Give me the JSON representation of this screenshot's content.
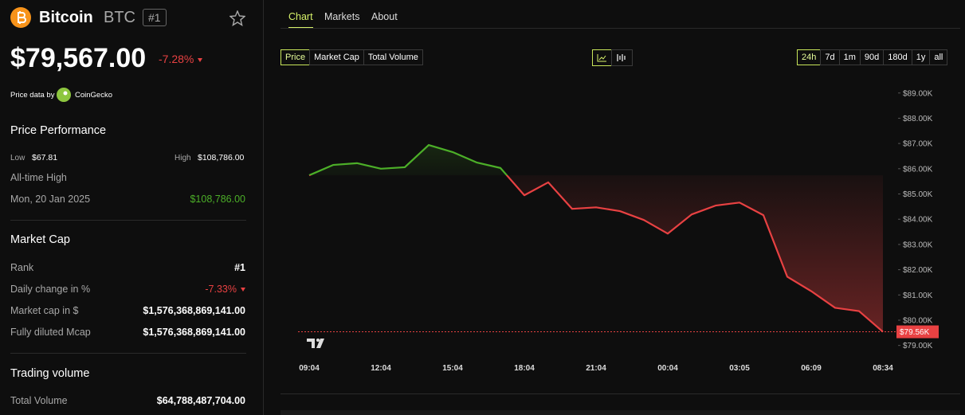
{
  "header": {
    "name": "Bitcoin",
    "symbol": "BTC",
    "rank_badge": "#1",
    "price": "$79,567.00",
    "change": "-7.28%"
  },
  "source": {
    "label": "Price data by",
    "provider": "CoinGecko"
  },
  "performance": {
    "title": "Price Performance",
    "low_label": "Low",
    "low": "$67.81",
    "high_label": "High",
    "high": "$108,786.00",
    "ath_label": "All-time High",
    "ath_date": "Mon, 20 Jan 2025",
    "ath_value": "$108,786.00"
  },
  "market_cap": {
    "title": "Market Cap",
    "rows": [
      {
        "label": "Rank",
        "value": "#1"
      },
      {
        "label": "Daily change in %",
        "value": "-7.33%"
      },
      {
        "label": "Market cap in $",
        "value": "$1,576,368,869,141.00"
      },
      {
        "label": "Fully diluted Mcap",
        "value": "$1,576,368,869,141.00"
      }
    ]
  },
  "trading_volume": {
    "title": "Trading volume",
    "rows": [
      {
        "label": "Total Volume",
        "value": "$64,788,487,704.00"
      }
    ]
  },
  "tabs": [
    "Chart",
    "Markets",
    "About"
  ],
  "metric_buttons": [
    "Price",
    "Market Cap",
    "Total Volume"
  ],
  "range_buttons": [
    "24h",
    "7d",
    "1m",
    "90d",
    "180d",
    "1y",
    "all"
  ],
  "chart_data": {
    "type": "line",
    "categories": [
      "09:04",
      null,
      null,
      "12:04",
      null,
      null,
      "15:04",
      null,
      null,
      "18:04",
      null,
      null,
      "21:04",
      null,
      null,
      "00:04",
      null,
      null,
      "03:05",
      null,
      null,
      "06:09",
      null,
      null,
      "08:34"
    ],
    "values": [
      85.74,
      86.15,
      86.22,
      86.0,
      86.06,
      86.94,
      86.66,
      86.25,
      86.03,
      84.95,
      85.46,
      84.41,
      84.47,
      84.32,
      83.97,
      83.43,
      84.19,
      84.54,
      84.66,
      84.16,
      81.72,
      81.15,
      80.49,
      80.36,
      79.54
    ],
    "color_up": "#4caf28",
    "color_down": "#e84142",
    "ylim": [
      78.8,
      89.15
    ],
    "yticks": [
      {
        "value": 79,
        "label": "$79.00K"
      },
      {
        "value": 80,
        "label": "$80.00K"
      },
      {
        "value": 81,
        "label": "$81.00K"
      },
      {
        "value": 82,
        "label": "$82.00K"
      },
      {
        "value": 83,
        "label": "$83.00K"
      },
      {
        "value": 84,
        "label": "$84.00K"
      },
      {
        "value": 85,
        "label": "$85.00K"
      },
      {
        "value": 86,
        "label": "$86.00K"
      },
      {
        "value": 87,
        "label": "$87.00K"
      },
      {
        "value": 88,
        "label": "$88.00K"
      },
      {
        "value": 89,
        "label": "$89.00K"
      }
    ],
    "last_label": "$79.56K"
  }
}
